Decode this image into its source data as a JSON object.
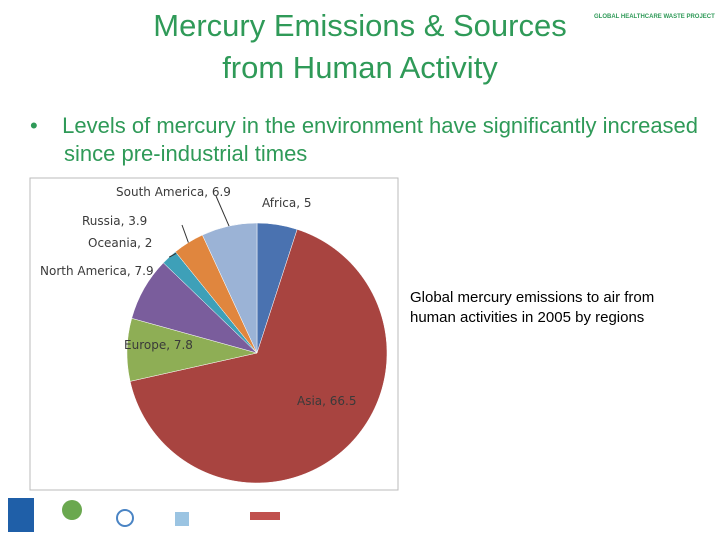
{
  "slide": {
    "title_lines": [
      "Mercury Emissions & Sources",
      "from Human Activity"
    ],
    "brand": "GLOBAL HEALTHCARE WASTE PROJECT",
    "bullet": "Levels of mercury in the environment have significantly increased since pre-industrial times",
    "caption": "Global mercury emissions to air from human activities in 2005 by regions"
  },
  "chart_data": {
    "type": "pie",
    "categories": [
      "Africa",
      "Asia",
      "Europe",
      "North America",
      "Oceania",
      "Russia",
      "South America"
    ],
    "values": [
      5,
      66.5,
      7.8,
      7.9,
      2,
      3.9,
      6.9
    ],
    "value_labels": [
      "Africa, 5",
      "Asia, 66.5",
      "Europe, 7.8",
      "North America, 7.9",
      "Oceania, 2",
      "Russia, 3.9",
      "South America, 6.9"
    ],
    "colors": [
      "#4a72b0",
      "#a84440",
      "#8eae55",
      "#7a5d9c",
      "#3ea0b8",
      "#e0863e",
      "#9bb3d6"
    ]
  }
}
